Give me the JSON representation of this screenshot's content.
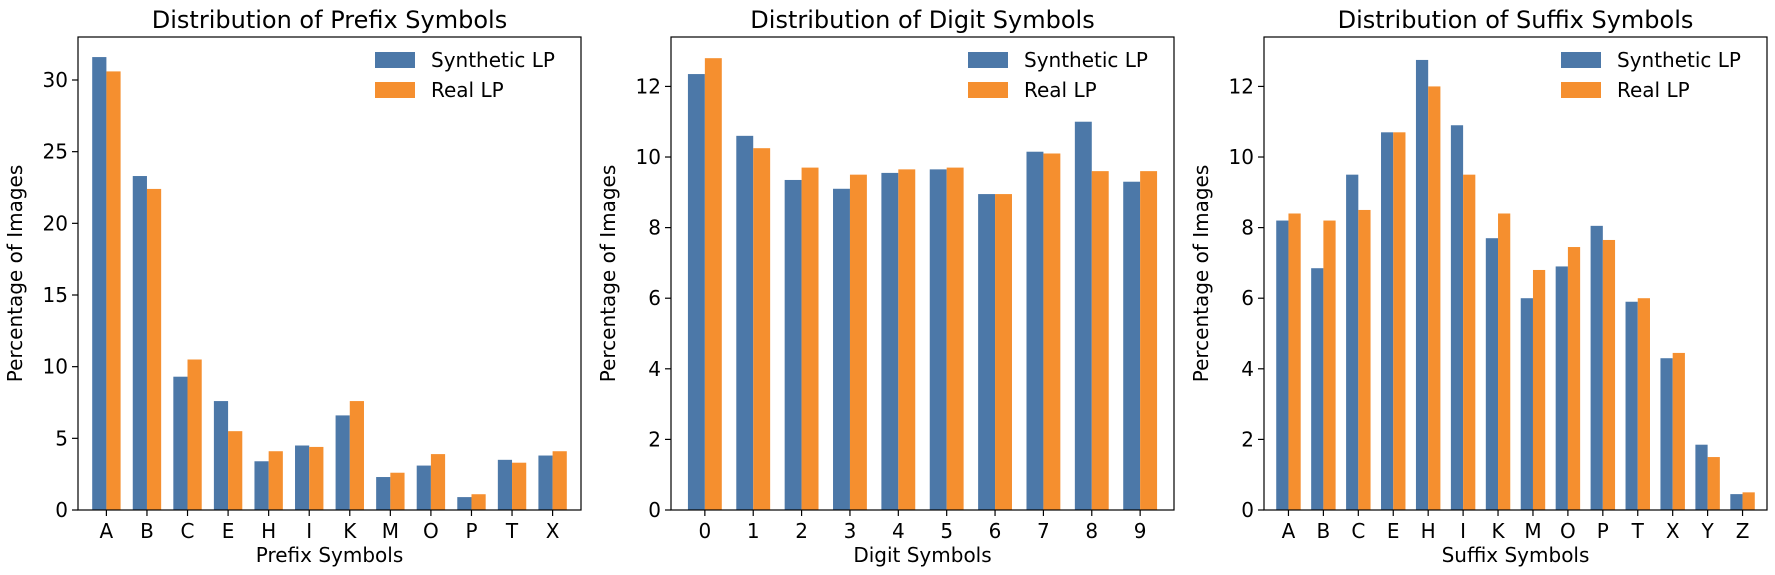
{
  "colors": {
    "synthetic": "#4c78a8",
    "real": "#f58f2f"
  },
  "chart_data": [
    {
      "type": "bar",
      "title": "Distribution of Prefix Symbols",
      "xlabel": "Prefix Symbols",
      "ylabel": "Percentage of Images",
      "ylim": [
        0,
        33
      ],
      "yticks": [
        0,
        5,
        10,
        15,
        20,
        25,
        30
      ],
      "legend": "top-right",
      "categories": [
        "A",
        "B",
        "C",
        "E",
        "H",
        "I",
        "K",
        "M",
        "O",
        "P",
        "T",
        "X"
      ],
      "series": [
        {
          "name": "Synthetic LP",
          "values": [
            31.6,
            23.3,
            9.3,
            7.6,
            3.4,
            4.5,
            6.6,
            2.3,
            3.1,
            0.9,
            3.5,
            3.8
          ]
        },
        {
          "name": "Real LP",
          "values": [
            30.6,
            22.4,
            10.5,
            5.5,
            4.1,
            4.4,
            7.6,
            2.6,
            3.9,
            1.1,
            3.3,
            4.1
          ]
        }
      ]
    },
    {
      "type": "bar",
      "title": "Distribution of Digit Symbols",
      "xlabel": "Digit Symbols",
      "ylabel": "Percentage of Images",
      "ylim": [
        0,
        13.4
      ],
      "yticks": [
        0,
        2,
        4,
        6,
        8,
        10,
        12
      ],
      "legend": "top-right",
      "categories": [
        "0",
        "1",
        "2",
        "3",
        "4",
        "5",
        "6",
        "7",
        "8",
        "9"
      ],
      "series": [
        {
          "name": "Synthetic LP",
          "values": [
            12.35,
            10.6,
            9.35,
            9.1,
            9.55,
            9.65,
            8.95,
            10.15,
            11.0,
            9.3
          ]
        },
        {
          "name": "Real LP",
          "values": [
            12.8,
            10.25,
            9.7,
            9.5,
            9.65,
            9.7,
            8.95,
            10.1,
            9.6,
            9.6
          ]
        }
      ]
    },
    {
      "type": "bar",
      "title": "Distribution of Suffix Symbols",
      "xlabel": "Suffix Symbols",
      "ylabel": "Percentage of Images",
      "ylim": [
        0,
        13.4
      ],
      "yticks": [
        0,
        2,
        4,
        6,
        8,
        10,
        12
      ],
      "legend": "top-right",
      "categories": [
        "A",
        "B",
        "C",
        "E",
        "H",
        "I",
        "K",
        "M",
        "O",
        "P",
        "T",
        "X",
        "Y",
        "Z"
      ],
      "series": [
        {
          "name": "Synthetic LP",
          "values": [
            8.2,
            6.85,
            9.5,
            10.7,
            12.75,
            10.9,
            7.7,
            6.0,
            6.9,
            8.05,
            5.9,
            4.3,
            1.85,
            0.45
          ]
        },
        {
          "name": "Real LP",
          "values": [
            8.4,
            8.2,
            8.5,
            10.7,
            12.0,
            9.5,
            8.4,
            6.8,
            7.45,
            7.65,
            6.0,
            4.45,
            1.5,
            0.5
          ]
        }
      ]
    }
  ]
}
